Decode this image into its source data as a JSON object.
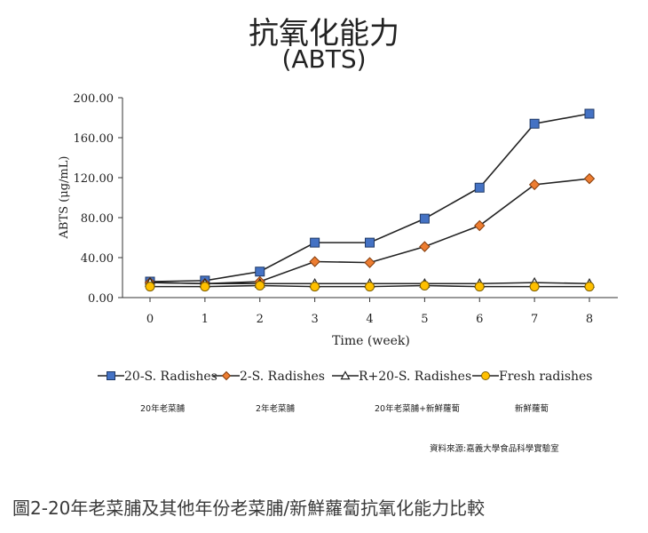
{
  "header": {
    "title": "抗氧化能力",
    "subtitle": "(ABTS)"
  },
  "chart_data": {
    "type": "line",
    "xlabel": "Time (week)",
    "ylabel": "ABTS (μg/mL)",
    "x": [
      0,
      1,
      2,
      3,
      4,
      5,
      6,
      7,
      8
    ],
    "xticks": [
      "0",
      "1",
      "2",
      "3",
      "4",
      "5",
      "6",
      "7",
      "8"
    ],
    "yticks": [
      "0.00",
      "40.00",
      "80.00",
      "120.00",
      "160.00",
      "200.00"
    ],
    "ylim": [
      0,
      200
    ],
    "grid": false,
    "legend_position": "bottom",
    "series": [
      {
        "name": "20-S. Radishes",
        "subtitle": "20年老菜脯",
        "marker": "square",
        "color": "#4472c4",
        "values": [
          16,
          17,
          26,
          55,
          55,
          79,
          110,
          174,
          184
        ]
      },
      {
        "name": "2-S. Radishes",
        "subtitle": "2年老菜脯",
        "marker": "diamond",
        "color": "#ed7d31",
        "values": [
          15,
          14,
          16,
          36,
          35,
          51,
          72,
          113,
          119
        ]
      },
      {
        "name": "R+20-S. Radishes",
        "subtitle": "20年老菜脯+新鮮蘿蔔",
        "marker": "triangle",
        "color": "#ffffff",
        "values": [
          15,
          14,
          14,
          14,
          14,
          14,
          14,
          15,
          14
        ]
      },
      {
        "name": "Fresh radishes",
        "subtitle": "新鮮蘿蔔",
        "marker": "circle",
        "color": "#ffc000",
        "values": [
          11,
          11,
          12,
          11,
          11,
          12,
          11,
          11,
          11
        ]
      }
    ]
  },
  "source": "資料來源:嘉義大學食品科學實驗室",
  "caption": "圖2-20年老菜脯及其他年份老菜脯/新鮮蘿蔔抗氧化能力比較"
}
